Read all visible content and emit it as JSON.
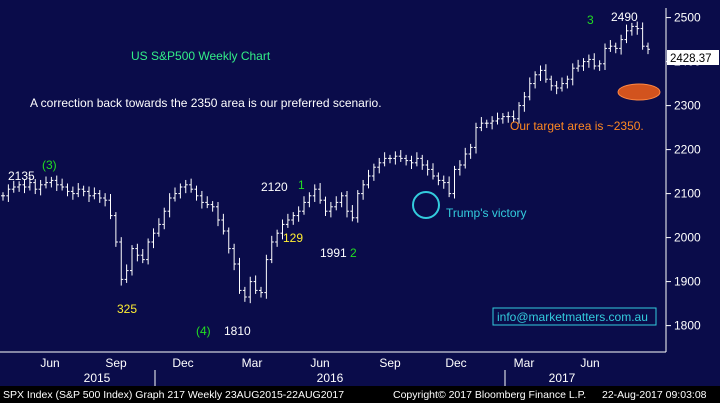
{
  "chart_data": {
    "type": "bar",
    "subtype": "ohlc-weekly",
    "title": "US S&P500 Weekly Chart",
    "subtitle": "A correction back towards the 2350 area is our preferred scenario.",
    "ylim": [
      1740,
      2540
    ],
    "y_ticks": [
      "1800",
      "1900",
      "2000",
      "2100",
      "2200",
      "2300",
      "2400",
      "2500"
    ],
    "x_month_ticks": [
      "Jun",
      "Sep",
      "Dec",
      "Mar",
      "Jun",
      "Sep",
      "Dec",
      "Mar",
      "Jun"
    ],
    "x_year_ticks": [
      "2015",
      "2016",
      "2017"
    ],
    "grid": false,
    "last_price": "2428.37",
    "series": [
      {
        "closes": [
          2095,
          2110,
          2115,
          2120,
          2115,
          2125,
          2110,
          2120,
          2125,
          2130,
          2120,
          2115,
          2105,
          2100,
          2110,
          2105,
          2095,
          2100,
          2090,
          2085,
          2050,
          1990,
          1905,
          1925,
          1975,
          1960,
          1950,
          1990,
          2010,
          2030,
          2060,
          2090,
          2100,
          2115,
          2120,
          2110,
          2095,
          2080,
          2075,
          2070,
          2040,
          2015,
          1975,
          1940,
          1880,
          1865,
          1900,
          1880,
          1875,
          1950,
          1990,
          2010,
          2030,
          2040,
          2050,
          2060,
          2080,
          2095,
          2110,
          2085,
          2060,
          2070,
          2080,
          2095,
          2060,
          2045,
          2100,
          2120,
          2140,
          2160,
          2170,
          2180,
          2180,
          2185,
          2180,
          2175,
          2170,
          2180,
          2165,
          2155,
          2140,
          2130,
          2125,
          2100,
          2155,
          2165,
          2190,
          2205,
          2250,
          2260,
          2260,
          2265,
          2270,
          2275,
          2275,
          2270,
          2300,
          2320,
          2350,
          2370,
          2380,
          2360,
          2345,
          2340,
          2350,
          2360,
          2385,
          2390,
          2400,
          2405,
          2390,
          2395,
          2430,
          2435,
          2430,
          2450,
          2470,
          2480,
          2475,
          2435,
          2428
        ]
      }
    ],
    "annotations": [
      {
        "text": "2135",
        "color": "#ffffff"
      },
      {
        "text": "(3)",
        "color": "#22dd22"
      },
      {
        "text": "325",
        "color": "#ffee33"
      },
      {
        "text": "(4)",
        "color": "#22dd22"
      },
      {
        "text": "1810",
        "color": "#ffffff"
      },
      {
        "text": "2120",
        "color": "#ffffff"
      },
      {
        "text": "1",
        "color": "#22dd22"
      },
      {
        "text": "129",
        "color": "#ffee33"
      },
      {
        "text": "1991",
        "color": "#ffffff"
      },
      {
        "text": "2",
        "color": "#22dd22"
      },
      {
        "text": "Trump's victory",
        "color": "#33ccdd"
      },
      {
        "text": "3",
        "color": "#22dd22"
      },
      {
        "text": "2490",
        "color": "#ffffff"
      },
      {
        "text": "Our target area is ~2350.",
        "color": "#ff8822"
      }
    ],
    "info_box": "info@marketmatters.com.au"
  },
  "footer": {
    "left": "SPX Index (S&P 500 Index) Graph 217  Weekly 23AUG2015-22AUG2017",
    "copyright": "Copyright© 2017 Bloomberg Finance L.P.",
    "timestamp": "22-Aug-2017 09:03:08"
  },
  "colors": {
    "background": "#0a0c4a",
    "bars": "#ffffff",
    "title": "#33ee88",
    "subtitle": "#ffffff",
    "target_ellipse": "#d2531e",
    "trump_circle": "#33ccdd",
    "info_border": "#33ccdd",
    "info_text": "#33ccdd",
    "last_price_box": "#ffffff",
    "axis": "#ffffff"
  }
}
